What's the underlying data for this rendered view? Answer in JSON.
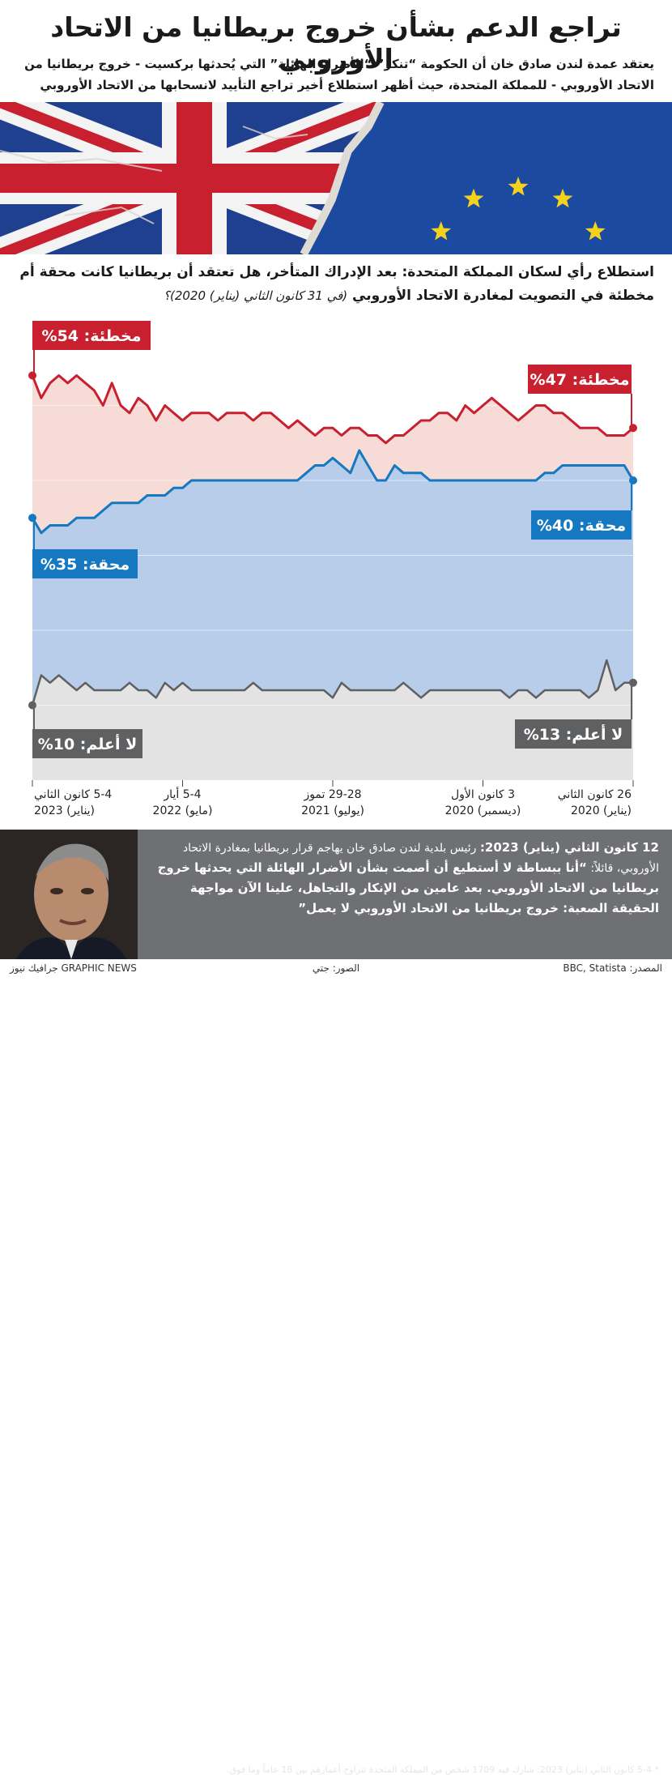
{
  "title": "تراجع الدعم بشأن خروج بريطانيا من الاتحاد الأوروبي",
  "subtitle": "يعتقد عمدة لندن صادق خان أن الحكومة “تنكر” “الأضرار الهائلة” التي يُحدثها بركسيت - خروج بريطانيا من الاتحاد الأوروبي - للمملكة المتحدة، حيث أظهر استطلاع أخير تراجع التأييد لانسحابها من الاتحاد الأوروبي",
  "question": {
    "text": "استطلاع رأي لسكان المملكة المتحدة: بعد الإدراك المتأخر، هل تعتقد أن بريطانيا كانت محقة أم مخطئة في التصويت لمغادرة الاتحاد الأوروبي",
    "date": "(في 31 كانون الثاني (يناير) 2020)؟"
  },
  "colors": {
    "wrong": "#c8202f",
    "right": "#1578c0",
    "dontknow": "#5f6062",
    "right_fill": "#b7cde9",
    "dontknow_fill": "#e3e3e4",
    "quote_bg": "#6f7073"
  },
  "chart_data": {
    "type": "line",
    "x_direction": "right-to-left",
    "ylim": [
      0,
      60
    ],
    "x_ticks": [
      {
        "line1": "26 كانون الثاني",
        "line2": "(يناير) 2020"
      },
      {
        "line1": "3 كانون الأول",
        "line2": "(ديسمبر) 2020"
      },
      {
        "line1": "29-28 تموز",
        "line2": "(يوليو) 2021"
      },
      {
        "line1": "5-4 أيار",
        "line2": "(مايو) 2022"
      },
      {
        "line1": "5-4 كانون الثاني",
        "line2": "(يناير) 2023"
      }
    ],
    "series": [
      {
        "key": "wrong",
        "values": [
          47,
          46,
          46,
          46,
          47,
          47,
          47,
          48,
          49,
          49,
          50,
          50,
          49,
          48,
          49,
          50,
          51,
          50,
          49,
          50,
          48,
          49,
          49,
          48,
          48,
          47,
          46,
          46,
          45,
          46,
          46,
          47,
          47,
          46,
          47,
          47,
          46,
          47,
          48,
          47,
          48,
          49,
          49,
          48,
          49,
          49,
          49,
          48,
          49,
          49,
          49,
          48,
          49,
          50,
          48,
          50,
          51,
          49,
          50,
          53,
          50,
          52,
          53,
          54,
          53,
          54,
          53,
          51,
          54
        ]
      },
      {
        "key": "right",
        "values": [
          40,
          42,
          42,
          42,
          42,
          42,
          42,
          42,
          42,
          41,
          41,
          40,
          40,
          40,
          40,
          40,
          40,
          40,
          40,
          40,
          40,
          40,
          40,
          40,
          41,
          41,
          41,
          42,
          40,
          40,
          42,
          44,
          41,
          42,
          43,
          42,
          42,
          41,
          40,
          40,
          40,
          40,
          40,
          40,
          40,
          40,
          40,
          40,
          40,
          40,
          40,
          39,
          39,
          38,
          38,
          38,
          37,
          37,
          37,
          37,
          36,
          35,
          35,
          35,
          34,
          34,
          34,
          33,
          35
        ]
      },
      {
        "key": "dontknow",
        "values": [
          13,
          13,
          12,
          16,
          12,
          11,
          12,
          12,
          12,
          12,
          12,
          11,
          12,
          12,
          11,
          12,
          12,
          12,
          12,
          12,
          12,
          12,
          12,
          12,
          11,
          12,
          13,
          12,
          12,
          12,
          12,
          12,
          12,
          13,
          11,
          12,
          12,
          12,
          12,
          12,
          12,
          12,
          12,
          13,
          12,
          12,
          12,
          12,
          12,
          12,
          12,
          13,
          12,
          13,
          11,
          12,
          12,
          13,
          12,
          12,
          12,
          12,
          13,
          12,
          13,
          14,
          13,
          14,
          10
        ]
      }
    ],
    "labels": {
      "wrong_start": "مخطئة: 54%",
      "wrong_end": "مخطئة: 47%",
      "right_start": "محقة: 35%",
      "right_end": "محقة: 40%",
      "dontknow_start": "لا أعلم: 10%",
      "dontknow_end": "لا أعلم: 13%"
    }
  },
  "quote": {
    "date": "12 كانون الثاني (يناير) 2023:",
    "intro": "رئيس بلدية لندن صادق خان يهاجم قرار بريطانيا بمغادرة الاتحاد الأوروبي، قائلاً:",
    "body": "“أنا ببساطة لا أستطيع أن أصمت بشأن الأضرار الهائلة التي يحدثها خروج بريطانيا من الاتحاد الأوروبي. بعد عامين من الإنكار والتجاهل، علينا الآن مواجهة الحقيقة الصعبة: خروج بريطانيا من الاتحاد الأوروبي لا يعمل”",
    "footnote": "* 5-4 كانون الثاني (يناير) 2023: شارك فيه 1709 شخص من المملكة المتحدة تتراوح أعمارهم بين 18 عاماً وما فوق."
  },
  "footer": {
    "source": "المصدر: BBC, Statista",
    "photos": "الصور: جتي",
    "credit": "GRAPHIC NEWS جرافيك نيوز"
  }
}
